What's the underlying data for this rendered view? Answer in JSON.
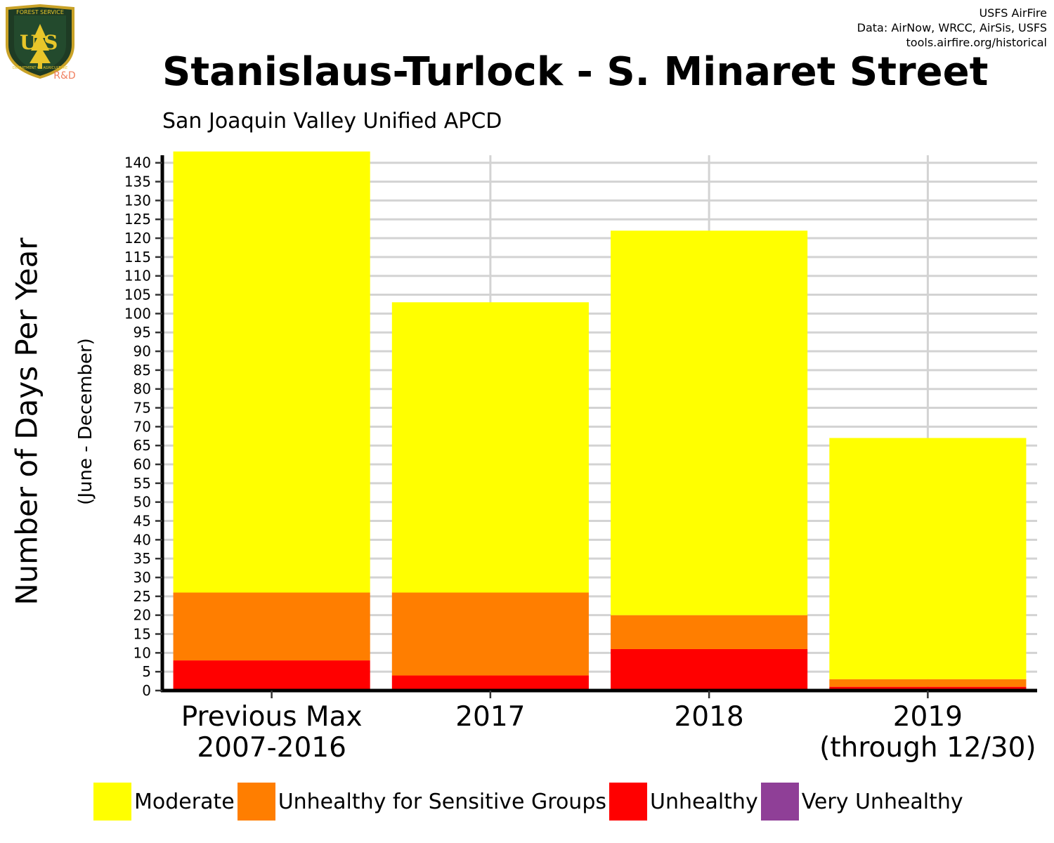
{
  "credits": {
    "line1": "USFS AirFire",
    "line2": "Data: AirNow, WRCC, AirSis, USFS",
    "line3": "tools.airfire.org/historical"
  },
  "logo": {
    "top_text": "FOREST SERVICE",
    "letters": "U S",
    "bottom_text": "DEPARTMENT OF AGRICULTURE",
    "tag": "R&D"
  },
  "chart_data": {
    "type": "bar",
    "stacked": true,
    "title": "Stanislaus-Turlock - S. Minaret Street",
    "subtitle": "San Joaquin Valley Unified APCD",
    "ylabel": "Number of Days Per Year",
    "ylabel_sub": "(June - December)",
    "xlabel": "",
    "categories": [
      [
        "Previous Max",
        "2007-2016"
      ],
      [
        "2017"
      ],
      [
        "2018"
      ],
      [
        "2019",
        "(through 12/30)"
      ]
    ],
    "ylim": [
      0,
      142
    ],
    "yticks": [
      0,
      5,
      10,
      15,
      20,
      25,
      30,
      35,
      40,
      45,
      50,
      55,
      60,
      65,
      70,
      75,
      80,
      85,
      90,
      95,
      100,
      105,
      110,
      115,
      120,
      125,
      130,
      135,
      140
    ],
    "grid": true,
    "legend_position": "bottom",
    "series": [
      {
        "name": "Moderate",
        "color": "#FFFF00",
        "values": [
          117,
          77,
          102,
          64
        ]
      },
      {
        "name": "Unhealthy for Sensitive Groups",
        "color": "#FF7E00",
        "values": [
          18,
          22,
          9,
          2
        ]
      },
      {
        "name": "Unhealthy",
        "color": "#FF0000",
        "values": [
          8,
          4,
          11,
          1
        ]
      },
      {
        "name": "Very Unhealthy",
        "color": "#8F3F97",
        "values": [
          0,
          0,
          0,
          0
        ]
      }
    ]
  }
}
